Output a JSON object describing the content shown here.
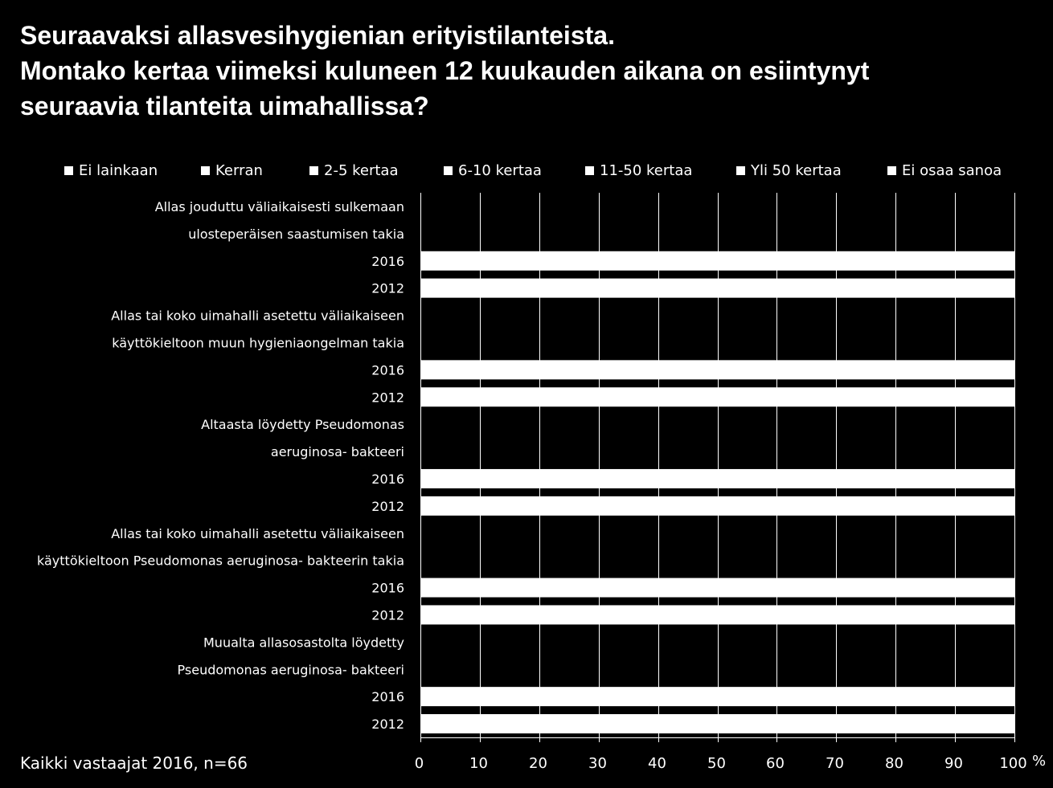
{
  "title_lines": [
    "Seuraavaksi allasvesihygienian erityistilanteista.",
    "Montako kertaa viimeksi kuluneen 12 kuukauden aikana on esiintynyt",
    "seuraavia tilanteita uimahallissa?"
  ],
  "footnote": "Kaikki vastaajat 2016, n=66",
  "colors": {
    "background": "#000000",
    "bars": "#ffffff",
    "grid": "#ffffff",
    "text": "#ffffff"
  },
  "chart_data": {
    "type": "bar",
    "orientation": "horizontal",
    "stacked": true,
    "title": "Seuraavaksi allasvesihygienian erityistilanteista. Montako kertaa viimeksi kuluneen 12 kuukauden aikana on esiintynyt seuraavia tilanteita uimahallissa?",
    "xlabel": "%",
    "ylabel": "",
    "xlim": [
      0,
      100
    ],
    "x_ticks": [
      "0",
      "10",
      "20",
      "30",
      "40",
      "50",
      "60",
      "70",
      "80",
      "90",
      "100"
    ],
    "grid": true,
    "legend_position": "top",
    "legend": [
      "Ei lainkaan",
      "Kerran",
      "2-5 kertaa",
      "6-10 kertaa",
      "11-50 kertaa",
      "Yli 50 kertaa",
      "Ei osaa sanoa"
    ],
    "category_rows": [
      {
        "label": "Allas jouduttu väliaikaisesti sulkemaan",
        "kind": "header"
      },
      {
        "label": "ulosteperäisen saastumisen takia",
        "kind": "header"
      },
      {
        "label": "2016",
        "kind": "bar",
        "total": 100
      },
      {
        "label": "2012",
        "kind": "bar",
        "total": 100
      },
      {
        "label": "Allas tai koko uimahalli asetettu väliaikaiseen",
        "kind": "header"
      },
      {
        "label": "käyttökieltoon muun hygieniaongelman takia",
        "kind": "header"
      },
      {
        "label": "2016",
        "kind": "bar",
        "total": 100
      },
      {
        "label": "2012",
        "kind": "bar",
        "total": 100
      },
      {
        "label": "Altaasta löydetty Pseudomonas",
        "kind": "header"
      },
      {
        "label": "aeruginosa- bakteeri",
        "kind": "header"
      },
      {
        "label": "2016",
        "kind": "bar",
        "total": 100
      },
      {
        "label": "2012",
        "kind": "bar",
        "total": 100
      },
      {
        "label": "Allas tai koko uimahalli asetettu väliaikaiseen",
        "kind": "header"
      },
      {
        "label": "käyttökieltoon Pseudomonas aeruginosa- bakteerin takia",
        "kind": "header"
      },
      {
        "label": "2016",
        "kind": "bar",
        "total": 100
      },
      {
        "label": "2012",
        "kind": "bar",
        "total": 100
      },
      {
        "label": "Muualta allasosastolta löydetty",
        "kind": "header"
      },
      {
        "label": "Pseudomonas aeruginosa- bakteeri",
        "kind": "header"
      },
      {
        "label": "2016",
        "kind": "bar",
        "total": 100
      },
      {
        "label": "2012",
        "kind": "bar",
        "total": 100
      }
    ]
  }
}
